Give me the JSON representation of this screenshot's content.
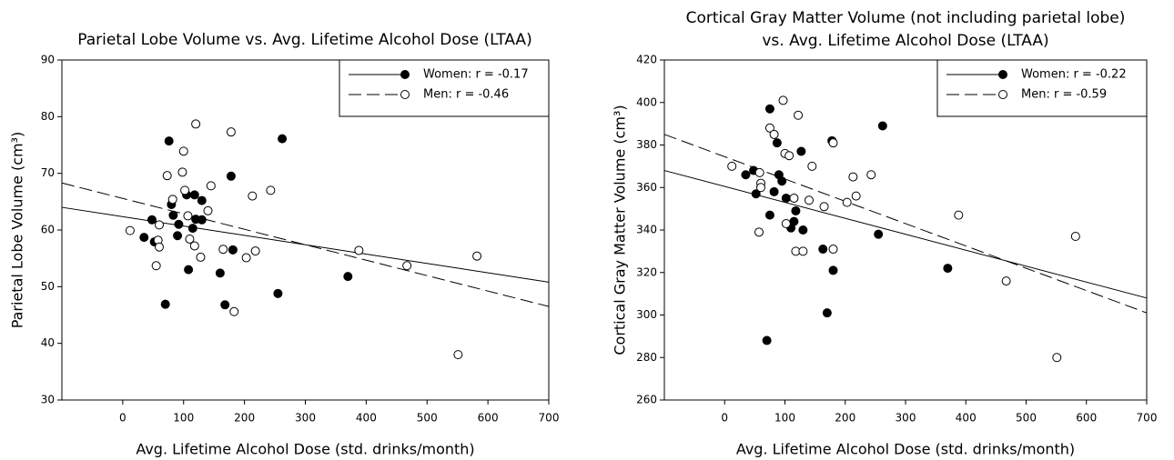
{
  "chart_data": [
    {
      "type": "scatter",
      "title": [
        "Parietal Lobe Volume vs. Avg. Lifetime Alcohol Dose (LTAA)"
      ],
      "xlabel": "Avg. Lifetime Alcohol Dose (std. drinks/month)",
      "ylabel": "Parietal Lobe Volume (cm³)",
      "xlim": [
        -100,
        700
      ],
      "ylim": [
        30,
        90
      ],
      "xticks": [
        0,
        100,
        200,
        300,
        400,
        500,
        600,
        700
      ],
      "yticks": [
        30,
        40,
        50,
        60,
        70,
        80,
        90
      ],
      "legend": "upper right",
      "series": [
        {
          "name": "Women: r = -0.17",
          "color": "#000000",
          "marker_fill": "#000000",
          "line_style": "solid",
          "x": [
            76,
            262,
            178,
            48,
            80,
            83,
            105,
            118,
            130,
            120,
            130,
            92,
            115,
            90,
            35,
            52,
            108,
            160,
            181,
            168,
            70,
            255,
            370
          ],
          "y": [
            75.7,
            76.1,
            69.5,
            61.8,
            64.5,
            62.6,
            66.2,
            66.2,
            65.2,
            61.9,
            61.8,
            61,
            60.3,
            59,
            58.7,
            57.9,
            53,
            52.4,
            56.5,
            46.8,
            46.9,
            48.8,
            51.8
          ],
          "fit_x": [
            -100,
            700
          ],
          "fit_y": [
            64,
            50.8
          ]
        },
        {
          "name": "Men: r = -0.46",
          "color": "#000000",
          "marker_fill": "#ffffff",
          "line_style": "dashed",
          "x": [
            12,
            60,
            58,
            60,
            55,
            73,
            82,
            100,
            98,
            102,
            107,
            120,
            110,
            118,
            128,
            140,
            145,
            165,
            178,
            183,
            203,
            213,
            218,
            243,
            388,
            467,
            551,
            582
          ],
          "y": [
            59.9,
            60.9,
            58.2,
            57,
            53.7,
            69.6,
            65.4,
            73.9,
            70.2,
            67,
            62.5,
            78.7,
            58.4,
            57.2,
            55.2,
            63.4,
            67.8,
            56.6,
            77.3,
            45.6,
            55.1,
            66,
            56.3,
            67,
            56.4,
            53.7,
            38,
            55.4
          ],
          "fit_x": [
            -100,
            700
          ],
          "fit_y": [
            68.3,
            46.5
          ]
        }
      ]
    },
    {
      "type": "scatter",
      "title": [
        "Cortical Gray Matter Volume (not including parietal lobe)",
        "vs. Avg. Lifetime Alcohol Dose (LTAA)"
      ],
      "xlabel": "Avg. Lifetime Alcohol Dose (std. drinks/month)",
      "ylabel": "Cortical Gray Matter Volume (cm³)",
      "xlim": [
        -100,
        700
      ],
      "ylim": [
        260,
        420
      ],
      "xticks": [
        0,
        100,
        200,
        300,
        400,
        500,
        600,
        700
      ],
      "yticks": [
        260,
        280,
        300,
        320,
        340,
        360,
        380,
        400,
        420
      ],
      "legend": "upper right",
      "series": [
        {
          "name": "Women: r = -0.22",
          "color": "#000000",
          "marker_fill": "#000000",
          "line_style": "solid",
          "x": [
            35,
            48,
            52,
            75,
            82,
            90,
            95,
            87,
            75,
            102,
            110,
            115,
            118,
            127,
            130,
            163,
            178,
            180,
            170,
            70,
            255,
            370,
            262
          ],
          "y": [
            366,
            368,
            357,
            347,
            358,
            366,
            363,
            381,
            397,
            355,
            341,
            344,
            349,
            377,
            340,
            331,
            382,
            321,
            301,
            288,
            338,
            322,
            389
          ],
          "fit_x": [
            -100,
            700
          ],
          "fit_y": [
            368,
            308
          ]
        },
        {
          "name": "Men: r = -0.59",
          "color": "#000000",
          "marker_fill": "#ffffff",
          "line_style": "dashed",
          "x": [
            12,
            57,
            60,
            60,
            58,
            75,
            82,
            97,
            100,
            107,
            102,
            115,
            118,
            122,
            130,
            140,
            145,
            165,
            180,
            180,
            203,
            213,
            218,
            243,
            388,
            467,
            551,
            582
          ],
          "y": [
            370,
            339,
            362,
            360,
            367,
            388,
            385,
            401,
            376,
            375,
            343,
            355,
            330,
            394,
            330,
            354,
            370,
            351,
            381,
            331,
            353,
            365,
            356,
            366,
            347,
            316,
            280,
            337
          ],
          "fit_x": [
            -100,
            700
          ],
          "fit_y": [
            385,
            301
          ]
        }
      ]
    }
  ]
}
